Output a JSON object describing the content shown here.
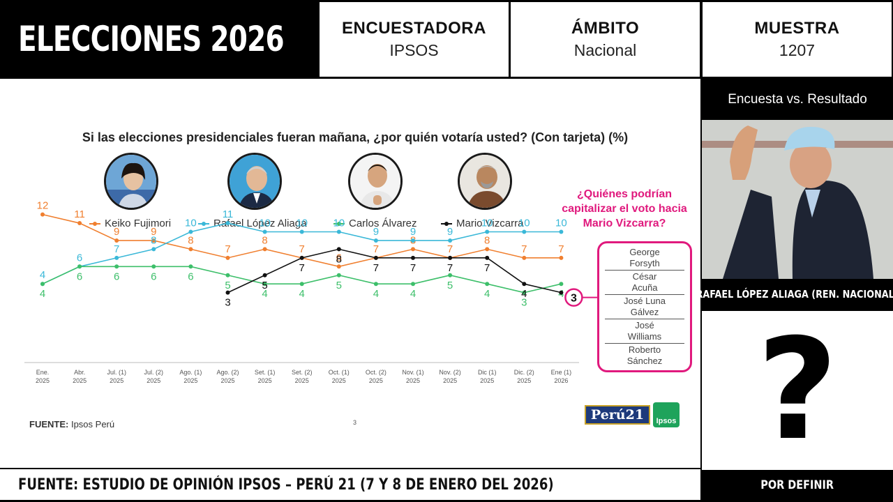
{
  "header": {
    "title": "ELECCIONES 2026",
    "pollster_label": "ENCUESTADORA",
    "pollster_value": "IPSOS",
    "scope_label": "ÁMBITO",
    "scope_value": "Nacional",
    "sample_label": "MUESTRA",
    "sample_value": "1207"
  },
  "side": {
    "header": "Encuesta vs. Resultado",
    "caption": "RAFAEL LÓPEZ ALIAGA (REN. NACIONAL)",
    "unknown_symbol": "?",
    "footer": "POR DEFINIR"
  },
  "footer": {
    "source_line": "FUENTE: ESTUDIO DE OPINIÓN IPSOS – PERÚ 21 (7 Y 8 DE ENERO DEL 2026)"
  },
  "panel": {
    "source_label": "FUENTE:",
    "source_value": "Ipsos Perú",
    "page_number": "3",
    "logo_text": "Perú21",
    "logo2_text": "Ipsos",
    "callout": "¿Quiénes podrían capitalizar el voto hacia Mario Vizcarra?",
    "candidates": [
      {
        "line1": "George",
        "line2": "Forsyth"
      },
      {
        "line1": "César",
        "line2": "Acuña"
      },
      {
        "line1": "José Luna",
        "line2": "Gálvez"
      },
      {
        "line1": "José",
        "line2": "Williams"
      },
      {
        "line1": "Roberto",
        "line2": "Sánchez"
      }
    ]
  },
  "colors": {
    "fujimori": "#f07f2f",
    "lopez": "#3ab8d8",
    "alvarez": "#3dbf6a",
    "vizcarra": "#111111",
    "accent": "#e0197d"
  },
  "chart_data": {
    "type": "line",
    "title": "Si las elecciones presidenciales fueran mañana, ¿por quién votaría usted? (Con tarjeta) (%)",
    "categories": [
      [
        "Ene.",
        "2025"
      ],
      [
        "Abr.",
        "2025"
      ],
      [
        "Jul. (1)",
        "2025"
      ],
      [
        "Jul. (2)",
        "2025"
      ],
      [
        "Ago. (1)",
        "2025"
      ],
      [
        "Ago. (2)",
        "2025"
      ],
      [
        "Set. (1)",
        "2025"
      ],
      [
        "Set. (2)",
        "2025"
      ],
      [
        "Oct. (1)",
        "2025"
      ],
      [
        "Oct. (2)",
        "2025"
      ],
      [
        "Nov. (1)",
        "2025"
      ],
      [
        "Nov. (2)",
        "2025"
      ],
      [
        "Dic (1)",
        "2025"
      ],
      [
        "Dic. (2)",
        "2025"
      ],
      [
        "Ene (1)",
        "2026"
      ]
    ],
    "ylim": [
      0,
      13
    ],
    "legend_position": "top",
    "series": [
      {
        "name": "Keiko Fujimori",
        "color_key": "fujimori",
        "label_pos": "above",
        "values": [
          12,
          11,
          9,
          9,
          8,
          7,
          8,
          7,
          6,
          7,
          8,
          7,
          8,
          7,
          7
        ]
      },
      {
        "name": "Rafael López Aliaga",
        "color_key": "lopez",
        "label_pos": "above",
        "values": [
          4,
          6,
          7,
          8,
          10,
          11,
          10,
          10,
          10,
          9,
          9,
          9,
          10,
          10,
          10
        ]
      },
      {
        "name": "Carlos Álvarez",
        "color_key": "alvarez",
        "label_pos": "below",
        "values": [
          4,
          6,
          6,
          6,
          6,
          5,
          4,
          4,
          5,
          4,
          4,
          5,
          4,
          3,
          4
        ]
      },
      {
        "name": "Mario Vizcarra",
        "color_key": "vizcarra",
        "label_pos": "below",
        "values": [
          null,
          null,
          null,
          null,
          null,
          3,
          5,
          7,
          8,
          7,
          7,
          7,
          7,
          4,
          3
        ]
      }
    ]
  }
}
